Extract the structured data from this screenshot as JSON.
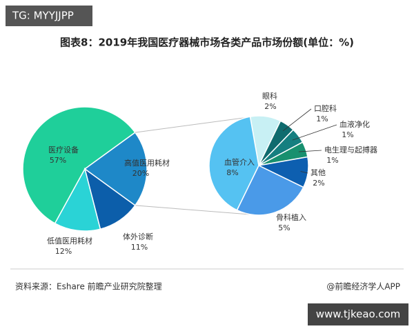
{
  "chart_data": {
    "type": "pie",
    "watermark": "TG: MYYJJPP",
    "title": "图表8：2019年我国医疗器械市场各类产品市场份额(单位：%)",
    "categories": [
      "医疗设备",
      "高值医用耗材",
      "体外诊断",
      "低值医用耗材"
    ],
    "values": [
      57,
      20,
      11,
      12
    ],
    "value_labels": [
      "57%",
      "20%",
      "11%",
      "12%"
    ],
    "colors": [
      "#1fcf9a",
      "#1e88c8",
      "#0c5eaa",
      "#2ad3d6"
    ],
    "breakdown": {
      "categories": [
        "眼科",
        "口腔科",
        "血液净化",
        "电生理与起搏器",
        "其他",
        "骨科植入",
        "血管介入"
      ],
      "values": [
        2,
        1,
        1,
        1,
        2,
        5,
        8
      ],
      "value_labels": [
        "2%",
        "1%",
        "1%",
        "1%",
        "2%",
        "5%",
        "8%"
      ],
      "colors": [
        "#c8f0f4",
        "#0f6b6e",
        "#157f80",
        "#18906f",
        "#0d5fb0",
        "#4a9ae8",
        "#55c2f2"
      ]
    },
    "source": "资料来源：Eshare 前瞻产业研究院整理",
    "credit": "@前瞻经济学人APP",
    "site": "www.tjkeao.com"
  }
}
